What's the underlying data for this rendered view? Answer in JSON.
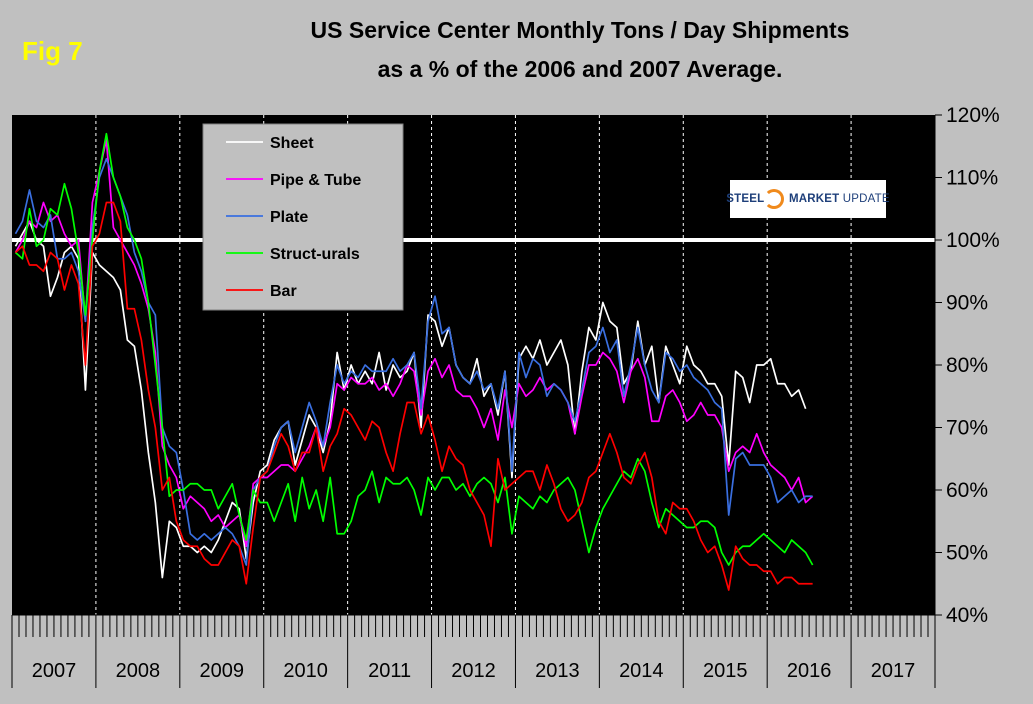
{
  "figure": {
    "label": "Fig 7",
    "title_line1": "US Service Center Monthly Tons / Day Shipments",
    "title_line2": "as a % of the 2006 and 2007 Average.",
    "logo_text_1": "STEEL",
    "logo_text_2": "MARKET",
    "logo_text_3": "UPDATE"
  },
  "chart_data": {
    "type": "line",
    "title": "US Service Center Monthly Tons / Day Shipments as a % of the 2006 and 2007 Average.",
    "xlabel": "",
    "ylabel": "",
    "ylim": [
      40,
      120
    ],
    "y_ticks": [
      "40%",
      "50%",
      "60%",
      "70%",
      "80%",
      "90%",
      "100%",
      "110%",
      "120%"
    ],
    "y_tick_values": [
      40,
      50,
      60,
      70,
      80,
      90,
      100,
      110,
      120
    ],
    "reference_line": 100,
    "x_start": "2007-01",
    "years": [
      "2007",
      "2008",
      "2009",
      "2010",
      "2011",
      "2012",
      "2013",
      "2014",
      "2015",
      "2016",
      "2017"
    ],
    "colors": {
      "background": "#000000",
      "gridline": "#ffffff",
      "reference": "#ffffff",
      "page": "#c0c0c0"
    },
    "series": [
      {
        "name": "Sheet",
        "color": "#ffffff",
        "values": [
          99,
          101,
          103,
          100,
          99,
          91,
          94,
          98,
          99,
          97,
          76,
          98,
          96,
          95,
          94,
          92,
          84,
          83,
          76,
          66,
          58,
          46,
          55,
          54,
          51,
          51,
          50,
          51,
          50,
          52,
          55,
          58,
          57,
          49,
          58,
          63,
          64,
          68,
          70,
          71,
          64,
          68,
          72,
          70,
          66,
          71,
          82,
          76,
          80,
          77,
          79,
          77,
          82,
          76,
          80,
          78,
          79,
          82,
          70,
          88,
          87,
          83,
          86,
          80,
          78,
          77,
          81,
          75,
          77,
          72,
          79,
          62,
          81,
          83,
          81,
          84,
          80,
          82,
          84,
          80,
          69,
          79,
          86,
          84,
          90,
          87,
          86,
          77,
          79,
          87,
          80,
          83,
          74,
          83,
          80,
          77,
          83,
          80,
          79,
          77,
          77,
          75,
          64,
          79,
          78,
          74,
          80,
          80,
          81,
          77,
          77,
          75,
          76,
          73
        ]
      },
      {
        "name": "Pipe & Tube",
        "color": "#ff00ff",
        "values": [
          98,
          100,
          103,
          102,
          106,
          103,
          104,
          101,
          99,
          100,
          87,
          106,
          111,
          116,
          102,
          100,
          98,
          96,
          93,
          89,
          82,
          67,
          64,
          62,
          57,
          59,
          58,
          57,
          55,
          56,
          54,
          55,
          56,
          51,
          61,
          62,
          62,
          63,
          64,
          64,
          63,
          65,
          67,
          70,
          67,
          70,
          77,
          76,
          78,
          77,
          77,
          78,
          76,
          77,
          75,
          77,
          80,
          79,
          72,
          79,
          81,
          78,
          80,
          76,
          75,
          75,
          73,
          70,
          73,
          68,
          76,
          70,
          77,
          75,
          76,
          78,
          76,
          77,
          76,
          74,
          69,
          75,
          80,
          80,
          82,
          81,
          79,
          74,
          79,
          81,
          78,
          71,
          71,
          75,
          76,
          74,
          71,
          72,
          74,
          72,
          72,
          70,
          63,
          66,
          67,
          66,
          69,
          66,
          64,
          63,
          62,
          60,
          62,
          58,
          59
        ]
      },
      {
        "name": "Plate",
        "color": "#3a6fe0",
        "values": [
          101,
          103,
          108,
          103,
          102,
          104,
          97,
          97,
          98,
          95,
          87,
          102,
          110,
          113,
          110,
          107,
          104,
          98,
          95,
          90,
          88,
          70,
          67,
          66,
          60,
          53,
          52,
          53,
          52,
          53,
          54,
          53,
          51,
          48,
          60,
          62,
          63,
          67,
          70,
          71,
          66,
          70,
          74,
          71,
          67,
          74,
          80,
          77,
          79,
          78,
          80,
          79,
          79,
          79,
          81,
          79,
          80,
          82,
          73,
          87,
          91,
          85,
          86,
          80,
          78,
          77,
          79,
          76,
          77,
          73,
          79,
          63,
          82,
          78,
          81,
          80,
          75,
          77,
          76,
          74,
          71,
          76,
          82,
          83,
          86,
          82,
          84,
          75,
          80,
          86,
          80,
          76,
          74,
          82,
          81,
          79,
          80,
          78,
          77,
          76,
          74,
          73,
          56,
          65,
          66,
          64,
          64,
          64,
          62,
          58,
          59,
          60,
          58,
          59,
          59
        ]
      },
      {
        "name": "Struct-urals",
        "color": "#00ff00",
        "values": [
          98,
          97,
          105,
          99,
          100,
          105,
          104,
          109,
          105,
          98,
          88,
          100,
          111,
          117,
          110,
          107,
          102,
          100,
          97,
          90,
          80,
          70,
          59,
          60,
          60,
          61,
          61,
          60,
          60,
          57,
          59,
          61,
          56,
          52,
          60,
          58,
          58,
          55,
          58,
          61,
          55,
          62,
          57,
          60,
          55,
          62,
          53,
          53,
          55,
          59,
          60,
          63,
          58,
          62,
          61,
          61,
          62,
          60,
          56,
          62,
          60,
          62,
          62,
          60,
          61,
          59,
          61,
          62,
          61,
          58,
          62,
          53,
          59,
          58,
          57,
          59,
          58,
          60,
          61,
          62,
          60,
          55,
          50,
          54,
          57,
          59,
          61,
          63,
          62,
          65,
          63,
          58,
          54,
          57,
          56,
          55,
          54,
          54,
          55,
          55,
          54,
          50,
          48,
          50,
          51,
          51,
          52,
          53,
          52,
          51,
          50,
          52,
          51,
          50,
          48
        ]
      },
      {
        "name": "Bar",
        "color": "#ff0000",
        "values": [
          98,
          99,
          96,
          96,
          95,
          98,
          97,
          92,
          96,
          93,
          80,
          99,
          101,
          106,
          106,
          103,
          89,
          89,
          84,
          76,
          70,
          60,
          62,
          55,
          52,
          51,
          51,
          49,
          48,
          48,
          50,
          52,
          51,
          45,
          54,
          62,
          63,
          66,
          69,
          67,
          63,
          66,
          66,
          70,
          63,
          67,
          69,
          73,
          72,
          70,
          68,
          71,
          70,
          66,
          63,
          69,
          74,
          74,
          69,
          72,
          68,
          63,
          67,
          65,
          64,
          60,
          58,
          56,
          51,
          65,
          60,
          61,
          62,
          63,
          63,
          60,
          64,
          61,
          57,
          55,
          56,
          58,
          62,
          63,
          66,
          69,
          66,
          62,
          61,
          64,
          66,
          62,
          55,
          53,
          58,
          57,
          57,
          55,
          52,
          50,
          51,
          48,
          44,
          51,
          49,
          48,
          48,
          47,
          47,
          45,
          46,
          46,
          45,
          45,
          45
        ]
      }
    ]
  }
}
